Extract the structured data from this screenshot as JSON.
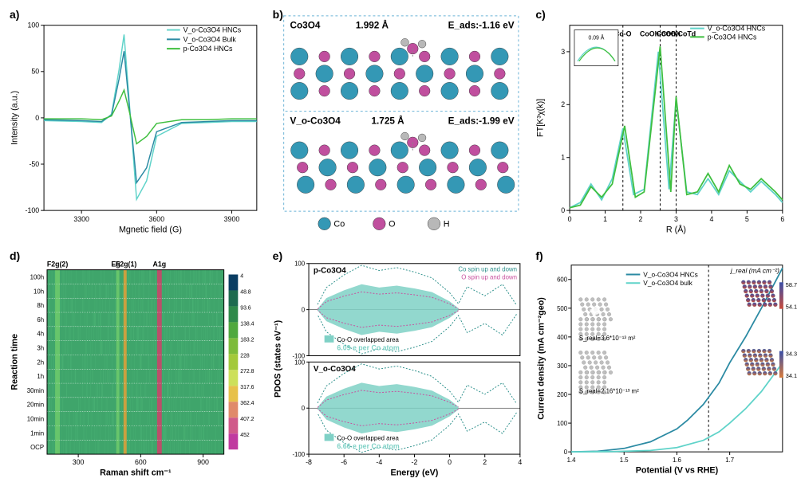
{
  "panels": {
    "a": {
      "label": "a)",
      "type": "line",
      "title": "",
      "xlabel": "Mgnetic field (G)",
      "ylabel": "Intensity (a.u.)",
      "xlim": [
        3150,
        4000
      ],
      "ylim": [
        -100,
        100
      ],
      "xticks": [
        3300,
        3600,
        3900
      ],
      "yticks": [
        -100,
        -50,
        0,
        50,
        100
      ],
      "series": [
        {
          "name": "V_o-Co3O4 HNCs",
          "color": "#5fd3c9",
          "x": [
            3150,
            3300,
            3380,
            3420,
            3450,
            3470,
            3490,
            3520,
            3560,
            3600,
            3700,
            3800,
            3900,
            4000
          ],
          "y": [
            -3,
            -4,
            -5,
            4,
            52,
            90,
            20,
            -88,
            -68,
            -20,
            -6,
            -5,
            -4,
            -4
          ]
        },
        {
          "name": "V_o-Co3O4 Bulk",
          "color": "#2b8aa3",
          "x": [
            3150,
            3300,
            3380,
            3420,
            3450,
            3470,
            3490,
            3520,
            3560,
            3600,
            3700,
            3800,
            3900,
            4000
          ],
          "y": [
            -2,
            -3,
            -4,
            3,
            42,
            72,
            15,
            -70,
            -54,
            -15,
            -5,
            -4,
            -3,
            -3
          ]
        },
        {
          "name": "p-Co3O4 HNCs",
          "color": "#3fbf3f",
          "x": [
            3150,
            3300,
            3380,
            3420,
            3450,
            3470,
            3490,
            3520,
            3560,
            3600,
            3700,
            3800,
            3900,
            4000
          ],
          "y": [
            -1,
            -1,
            -2,
            2,
            18,
            30,
            8,
            -28,
            -20,
            -6,
            -2,
            -2,
            -1,
            -1
          ]
        }
      ],
      "legend_pos": "top-right",
      "background_color": "#ffffff",
      "axis_color": "#000000",
      "label_fontsize": 11,
      "tick_fontsize": 9
    },
    "b": {
      "label": "b)",
      "type": "infographic",
      "border_color": "#6bb3d6",
      "background_color": "#ffffff",
      "top": {
        "material": "Co3O4",
        "bond": "1.992 Å",
        "eads_label": "E_ads:",
        "eads": "-1.16 eV"
      },
      "bottom": {
        "material": "V_o-Co3O4",
        "bond": "1.725 Å",
        "eads_label": "E_ads:",
        "eads": "-1.99 eV"
      },
      "atoms": [
        {
          "name": "Co",
          "color": "#3498b5"
        },
        {
          "name": "O",
          "color": "#c04f9e"
        },
        {
          "name": "H",
          "color": "#b8b8b8"
        }
      ],
      "title_fontsize": 12
    },
    "c": {
      "label": "c)",
      "type": "line",
      "xlabel": "R (Å)",
      "ylabel": "FT[K³χ(k)]",
      "xlim": [
        0,
        6
      ],
      "ylim": [
        0,
        3.5
      ],
      "xticks": [
        0,
        1,
        2,
        3,
        4,
        5,
        6
      ],
      "yticks": [
        0,
        1,
        2,
        3
      ],
      "peak_labels": [
        {
          "text": "Co-O",
          "x": 1.5
        },
        {
          "text": "CoOh-CoOh",
          "x": 2.55
        },
        {
          "text": "CoOh-CoTd",
          "x": 3.0
        }
      ],
      "inset": {
        "text": "0.09 Å",
        "xlim": [
          1.2,
          1.8
        ],
        "ylim": [
          1.2,
          1.8
        ]
      },
      "series": [
        {
          "name": "V_o-Co3O4 HNCs",
          "color": "#5fd3c9",
          "x": [
            0,
            0.3,
            0.6,
            0.9,
            1.2,
            1.5,
            1.8,
            2.1,
            2.5,
            2.8,
            3.0,
            3.3,
            3.6,
            3.9,
            4.2,
            4.5,
            4.8,
            5.1,
            5.4,
            5.8,
            6.0
          ],
          "y": [
            0.05,
            0.15,
            0.5,
            0.2,
            0.6,
            1.55,
            0.3,
            0.4,
            3.0,
            0.4,
            2.1,
            0.35,
            0.3,
            0.6,
            0.3,
            0.75,
            0.55,
            0.35,
            0.55,
            0.3,
            0.15
          ]
        },
        {
          "name": "p-Co3O4 HNCs",
          "color": "#3fbf3f",
          "x": [
            0,
            0.3,
            0.6,
            0.9,
            1.2,
            1.55,
            1.85,
            2.1,
            2.55,
            2.85,
            3.0,
            3.3,
            3.6,
            3.9,
            4.2,
            4.5,
            4.8,
            5.1,
            5.4,
            5.8,
            6.0
          ],
          "y": [
            0.05,
            0.1,
            0.45,
            0.25,
            0.5,
            1.6,
            0.25,
            0.35,
            3.1,
            0.35,
            2.15,
            0.3,
            0.35,
            0.7,
            0.35,
            0.85,
            0.5,
            0.4,
            0.6,
            0.35,
            0.2
          ]
        }
      ],
      "dashed_lines_x": [
        1.5,
        2.55,
        3.0
      ],
      "background_color": "#ffffff",
      "axis_color": "#000000"
    },
    "d": {
      "label": "d)",
      "type": "heatmap",
      "xlabel": "Raman shift  cm⁻¹",
      "ylabel": "Reaction time",
      "xlim": [
        150,
        1000
      ],
      "xticks": [
        300,
        600,
        900
      ],
      "yticks": [
        "OCP",
        "1min",
        "10min",
        "20min",
        "30min",
        "1h",
        "2h",
        "3h",
        "4h",
        "6h",
        "8h",
        "10h",
        "100h"
      ],
      "top_labels": [
        {
          "text": "F2g(2)",
          "x": 200
        },
        {
          "text": "Eg",
          "x": 480
        },
        {
          "text": "F2g(1)",
          "x": 530
        },
        {
          "text": "A1g",
          "x": 690
        }
      ],
      "colorbar": {
        "values": [
          4.0,
          48.8,
          93.6,
          138.4,
          183.2,
          228.0,
          272.8,
          317.6,
          362.4,
          407.2,
          452.0
        ],
        "colors": [
          "#0a3d62",
          "#1e6b4f",
          "#2f8a4a",
          "#4fa83d",
          "#7dbb3a",
          "#a3c93a",
          "#cde05a",
          "#e7c14a",
          "#e08a6a",
          "#d05a8a",
          "#c03aa0"
        ]
      },
      "band_colors": {
        "bg": "#3fa56b",
        "noise": "#4fb878",
        "peak1": "#6cc96c",
        "peak2": "#d9a03c",
        "peak3": "#c24a6a"
      }
    },
    "e": {
      "label": "e)",
      "type": "area",
      "xlabel": "Energy (eV)",
      "ylabel": "PDOS (states eV⁻¹)",
      "xlim": [
        -8,
        4
      ],
      "ylim": [
        -100,
        100
      ],
      "xticks": [
        -8,
        -6,
        -4,
        -2,
        0,
        2,
        4
      ],
      "yticks": [
        -100,
        0,
        100
      ],
      "sub": [
        {
          "title": "p-Co3O4",
          "overlap_text": "6.09 e per Co atom",
          "overlap_color": "#7fd1c6",
          "overlap_label": "Co-O overlapped area",
          "co_color": "#2a8f8a",
          "o_color": "#c84f9e",
          "legend": [
            "Co spin up and down",
            "O spin up and down"
          ]
        },
        {
          "title": "V_o-Co3O4",
          "overlap_text": "6.66 e per Co atom",
          "overlap_color": "#7fd1c6",
          "overlap_label": "Co-O overlapped area",
          "co_color": "#2a8f8a",
          "o_color": "#c84f9e"
        }
      ],
      "background_color": "#ffffff"
    },
    "f": {
      "label": "f)",
      "type": "line",
      "xlabel": "Potential (V vs RHE)",
      "ylabel": "Current density (mA cm⁻²geo)",
      "xlim": [
        1.4,
        1.8
      ],
      "ylim": [
        0,
        650
      ],
      "xticks": [
        1.4,
        1.5,
        1.6,
        1.7
      ],
      "yticks": [
        0,
        100,
        200,
        300,
        400,
        500,
        600
      ],
      "legend_title": "j_real (mA cm⁻²)",
      "series": [
        {
          "name": "V_o-Co3O4 HNCs",
          "color": "#2b8aa3",
          "x": [
            1.4,
            1.45,
            1.5,
            1.55,
            1.6,
            1.62,
            1.65,
            1.68,
            1.7,
            1.73,
            1.76,
            1.8
          ],
          "y": [
            0,
            2,
            12,
            35,
            80,
            110,
            165,
            240,
            310,
            400,
            500,
            640
          ]
        },
        {
          "name": "V_o-Co3O4 bulk",
          "color": "#5fd3c9",
          "x": [
            1.4,
            1.48,
            1.55,
            1.6,
            1.65,
            1.68,
            1.7,
            1.73,
            1.76,
            1.8
          ],
          "y": [
            0,
            1,
            5,
            15,
            40,
            70,
            100,
            150,
            210,
            310
          ]
        }
      ],
      "vline_x": 1.66,
      "surface_text": [
        "S_real=3.6*10⁻¹³ m²",
        "S_real=2.16*10⁻¹³ m²"
      ],
      "cube_bars": [
        {
          "top": "58.7",
          "bottom": "54.1",
          "grad_top": "#3a4fa8",
          "grad_bot": "#c94a3a"
        },
        {
          "top": "34.3",
          "bottom": "34.1",
          "grad_top": "#3a4fa8",
          "grad_bot": "#d87a3a"
        }
      ],
      "model_color": "#bfbfbf",
      "background_color": "#ffffff"
    }
  }
}
